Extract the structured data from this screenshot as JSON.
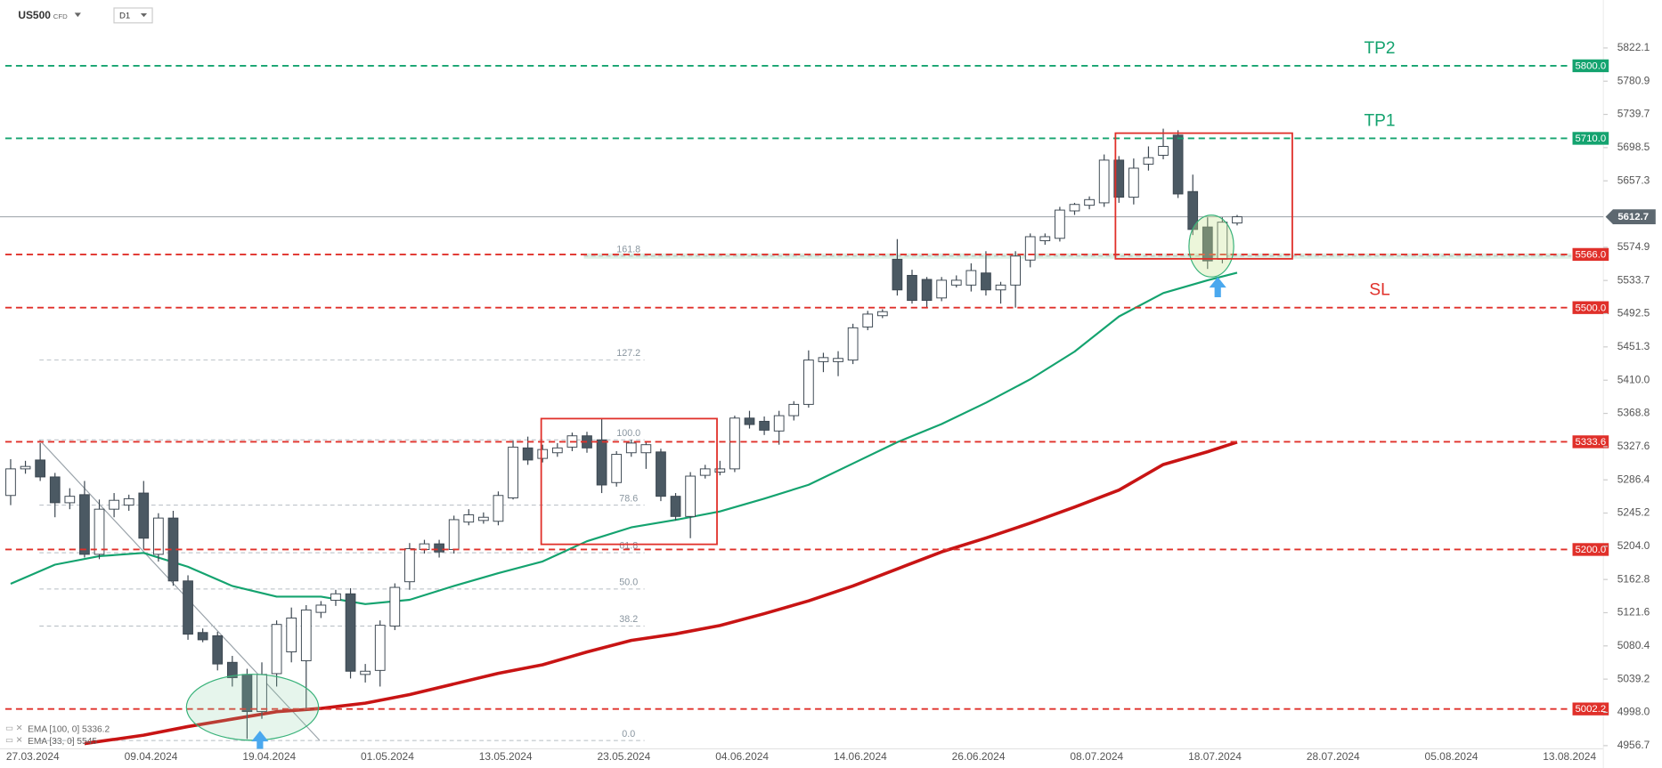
{
  "toolbar": {
    "symbol": "US500",
    "market": "CFD",
    "timeframe": "D1"
  },
  "chart_data": {
    "type": "candlestick",
    "categories": [
      null,
      null,
      "27.03.2024",
      null,
      null,
      null,
      null,
      null,
      null,
      null,
      "09.04.2024",
      null,
      null,
      null,
      null,
      null,
      null,
      null,
      "19.04.2024",
      null,
      null,
      null,
      null,
      null,
      null,
      null,
      "01.05.2024",
      null,
      null,
      null,
      null,
      null,
      null,
      null,
      "13.05.2024",
      null,
      null,
      null,
      null,
      null,
      null,
      null,
      "23.05.2024",
      null,
      null,
      null,
      null,
      null,
      null,
      null,
      "04.06.2024",
      null,
      null,
      null,
      null,
      null,
      null,
      null,
      "14.06.2024",
      null,
      null,
      null,
      null,
      null,
      null,
      null,
      "26.06.2024",
      null,
      null,
      null,
      null,
      null,
      null,
      null,
      "08.07.2024",
      null,
      null,
      null,
      null,
      null,
      null,
      null,
      "18.07.2024",
      null,
      null,
      null,
      null,
      null,
      null,
      null,
      "28.07.2024",
      null,
      null,
      null,
      null,
      null,
      null,
      null,
      "05.08.2024",
      null,
      null,
      null,
      null,
      null,
      null,
      null,
      "13.08.2024"
    ],
    "open": [
      5267,
      5300,
      5311,
      5290,
      5258,
      5268,
      5194,
      5250,
      5255,
      5270,
      5194,
      5239,
      5161,
      5097,
      5093,
      5060,
      5045,
      4999,
      5046,
      5073,
      5062,
      5122,
      5137,
      5145,
      5045,
      5050,
      5105,
      5160,
      5200,
      5207,
      5200,
      5234,
      5236,
      5235,
      5264,
      5326,
      5313,
      5320,
      5327,
      5341,
      5336,
      5283,
      5320,
      5320,
      5321,
      5266,
      5241,
      5292,
      5296,
      5300,
      5363,
      5359,
      5347,
      5366,
      5380,
      5433,
      5433,
      5435,
      5476,
      5490,
      5560,
      5540,
      5535,
      5512,
      5528,
      5528,
      5543,
      5522,
      5528,
      5559,
      5583,
      5586,
      5620,
      5627,
      5630,
      5683,
      5637,
      5678,
      5689,
      5714,
      5644,
      5600,
      5560,
      5605,
      null,
      null,
      null,
      null,
      null,
      null,
      null,
      null,
      null,
      null,
      null,
      null,
      null,
      null,
      null,
      null,
      null,
      null,
      null,
      null,
      null,
      null,
      null
    ],
    "high": [
      5312,
      5310,
      5332,
      5295,
      5276,
      5285,
      5262,
      5270,
      5268,
      5285,
      5245,
      5248,
      5168,
      5102,
      5098,
      5068,
      5052,
      5060,
      5112,
      5128,
      5131,
      5136,
      5150,
      5152,
      5058,
      5112,
      5158,
      5208,
      5212,
      5212,
      5242,
      5250,
      5246,
      5272,
      5335,
      5340,
      5330,
      5332,
      5345,
      5346,
      5362,
      5322,
      5336,
      5334,
      5325,
      5270,
      5296,
      5305,
      5310,
      5366,
      5372,
      5365,
      5372,
      5384,
      5447,
      5444,
      5446,
      5480,
      5496,
      5498,
      5585,
      5547,
      5538,
      5538,
      5540,
      5555,
      5570,
      5532,
      5570,
      5592,
      5592,
      5625,
      5630,
      5638,
      5690,
      5688,
      5685,
      5700,
      5722,
      5720,
      5665,
      5612,
      5612,
      5615,
      null,
      null,
      null,
      null,
      null,
      null,
      null,
      null,
      null,
      null,
      null,
      null,
      null,
      null,
      null,
      null,
      null,
      null,
      null,
      null,
      null,
      null,
      null
    ],
    "low": [
      5255,
      5294,
      5285,
      5240,
      5250,
      5190,
      5188,
      5240,
      5248,
      5200,
      5185,
      5155,
      5088,
      5085,
      5050,
      5030,
      4965,
      4990,
      5030,
      5060,
      5000,
      5115,
      5130,
      5040,
      5035,
      5030,
      5100,
      5150,
      5195,
      5190,
      5195,
      5230,
      5232,
      5230,
      5262,
      5305,
      5308,
      5315,
      5322,
      5320,
      5270,
      5278,
      5315,
      5300,
      5260,
      5236,
      5214,
      5288,
      5292,
      5296,
      5350,
      5342,
      5330,
      5360,
      5376,
      5420,
      5415,
      5430,
      5472,
      5487,
      5515,
      5505,
      5500,
      5508,
      5525,
      5520,
      5515,
      5505,
      5500,
      5550,
      5578,
      5582,
      5615,
      5622,
      5625,
      5630,
      5628,
      5670,
      5684,
      5636,
      5590,
      5548,
      5555,
      5602,
      null,
      null,
      null,
      null,
      null,
      null,
      null,
      null,
      null,
      null,
      null,
      null,
      null,
      null,
      null,
      null,
      null,
      null,
      null,
      null,
      null,
      null,
      null
    ],
    "close": [
      5300,
      5303,
      5290,
      5258,
      5266,
      5194,
      5250,
      5261,
      5263,
      5214,
      5239,
      5161,
      5095,
      5088,
      5058,
      5041,
      4999,
      5045,
      5107,
      5115,
      5125,
      5131,
      5145,
      5049,
      5049,
      5106,
      5153,
      5201,
      5207,
      5197,
      5237,
      5243,
      5240,
      5267,
      5327,
      5311,
      5324,
      5326,
      5341,
      5326,
      5280,
      5318,
      5332,
      5330,
      5266,
      5241,
      5291,
      5300,
      5300,
      5363,
      5355,
      5348,
      5366,
      5380,
      5435,
      5438,
      5437,
      5475,
      5492,
      5495,
      5522,
      5509,
      5509,
      5534,
      5534,
      5546,
      5522,
      5528,
      5564,
      5588,
      5588,
      5621,
      5628,
      5634,
      5683,
      5637,
      5673,
      5686,
      5700,
      5641,
      5597,
      5558,
      5606,
      5612.7,
      null,
      null,
      null,
      null,
      null,
      null,
      null,
      null,
      null,
      null,
      null,
      null,
      null,
      null,
      null,
      null,
      null,
      null,
      null,
      null,
      null,
      null,
      null
    ],
    "up_color": "#ffffff",
    "down_color": "#4b5963",
    "wick_color": "#3b4650",
    "ylim": [
      4956.7,
      5875.0
    ],
    "yticks": [
      5822.1,
      5780.9,
      5739.7,
      5698.5,
      5657.3,
      5574.9,
      5533.7,
      5492.5,
      5451.3,
      {
        "value": 5410,
        "label": "5410.0"
      },
      5368.8,
      5327.6,
      5286.4,
      5245.2,
      {
        "value": 5204,
        "label": "5204.0"
      },
      5162.8,
      5121.6,
      5080.4,
      5039.2,
      {
        "value": 4998,
        "label": "4998.0"
      },
      4956.7
    ],
    "series": [
      {
        "name": "EMA [100, 0] 5336.2",
        "color": "#c81414",
        "x": [
          5,
          9,
          12,
          15,
          18,
          21,
          24,
          27,
          30,
          33,
          36,
          39,
          42,
          45,
          48,
          51,
          54,
          57,
          60,
          63,
          66,
          69,
          72,
          75,
          78,
          81,
          83
        ],
        "values": [
          4959.2,
          4969.7,
          4980.3,
          4989.6,
          4998.8,
          5002.8,
          5009.4,
          5020.0,
          5033.2,
          5046.4,
          5057.0,
          5072.8,
          5087.3,
          5095.3,
          5105.8,
          5120.4,
          5136.2,
          5154.7,
          5175.9,
          5197.0,
          5214.2,
          5232.7,
          5252.5,
          5273.7,
          5305.4,
          5321.3,
          5333.1
        ]
      },
      {
        "name": "EMA [33, 0] 5545",
        "color": "#14a36f",
        "x": [
          0,
          3,
          6,
          9,
          12,
          15,
          18,
          21,
          24,
          27,
          30,
          33,
          36,
          39,
          42,
          45,
          48,
          51,
          54,
          57,
          60,
          63,
          66,
          69,
          72,
          75,
          78,
          81,
          83
        ],
        "values": [
          5157.4,
          5181.2,
          5191.7,
          5195.7,
          5178.5,
          5154.7,
          5141.5,
          5141.5,
          5132.3,
          5137.6,
          5154.7,
          5170.6,
          5185.1,
          5210.2,
          5227.4,
          5236.7,
          5247.2,
          5263.1,
          5280.3,
          5306.7,
          5333.1,
          5355.6,
          5382.0,
          5411.1,
          5445.5,
          5489.1,
          5518.1,
          5534.0,
          5543.3
        ]
      }
    ],
    "levels": [
      {
        "value": 5800,
        "label": "5800.0",
        "color": "#14a36f",
        "tag": "TP2"
      },
      {
        "value": 5710,
        "label": "5710.0",
        "color": "#14a36f",
        "tag": "TP1"
      },
      {
        "value": 5566,
        "label": "5566.0",
        "color": "#e0302a"
      },
      {
        "value": 5500,
        "label": "5500.0",
        "color": "#e0302a",
        "tag": "SL"
      },
      {
        "value": 5333.6,
        "label": "5333.6",
        "color": "#e0302a"
      },
      {
        "value": 5200,
        "label": "5200.0",
        "color": "#e0302a"
      },
      {
        "value": 5002.2,
        "label": "5002.2",
        "color": "#e0302a"
      }
    ],
    "current_price": 5612.7,
    "fib_levels": [
      {
        "label": "161.8",
        "value": 5564
      },
      {
        "label": "127.2",
        "value": 5435
      },
      {
        "label": "100.0",
        "value": 5336
      },
      {
        "label": "78.6",
        "value": 5255
      },
      {
        "label": "61.8",
        "value": 5196
      },
      {
        "label": "50.0",
        "value": 5151
      },
      {
        "label": "38.2",
        "value": 5105
      },
      {
        "label": "0.0",
        "value": 4963
      }
    ]
  }
}
